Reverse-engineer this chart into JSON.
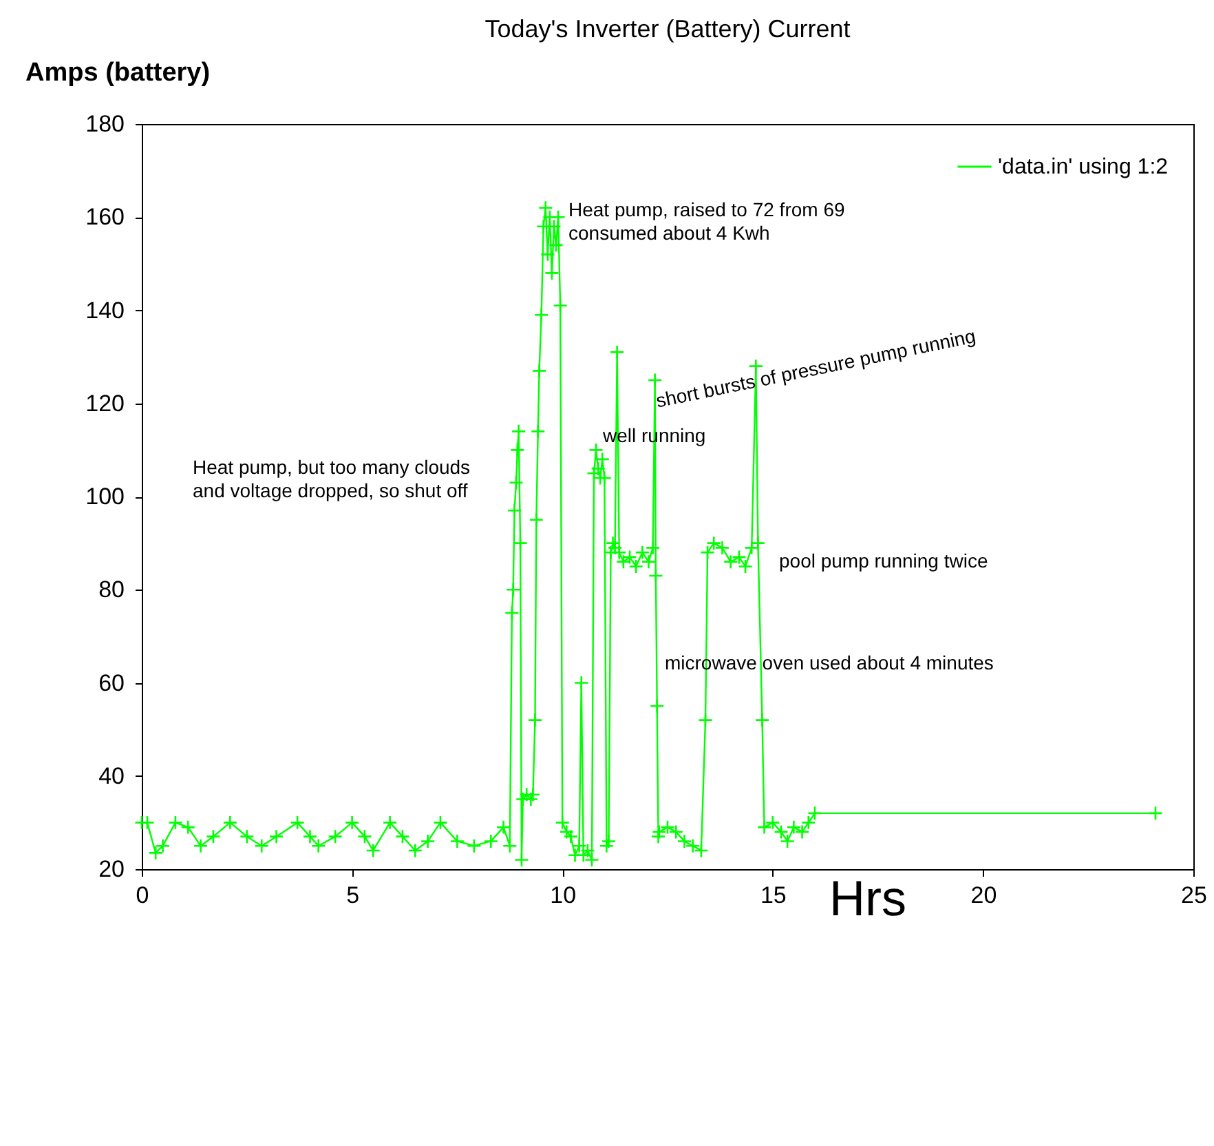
{
  "chart_data": {
    "type": "line",
    "title": "Today's Inverter (Battery) Current",
    "xlabel": "Hrs",
    "ylabel": "Amps (battery)",
    "x": [
      0,
      0.13,
      0.33,
      0.5,
      0.8,
      1.1,
      1.4,
      1.7,
      2.1,
      2.5,
      2.85,
      3.2,
      3.7,
      4.0,
      4.2,
      4.6,
      5.0,
      5.3,
      5.5,
      5.9,
      6.2,
      6.5,
      6.8,
      7.1,
      7.5,
      7.9,
      8.3,
      8.6,
      8.75,
      8.8,
      8.83,
      8.86,
      8.9,
      8.93,
      8.96,
      9.0,
      9.03,
      9.06,
      9.15,
      9.25,
      9.3,
      9.35,
      9.38,
      9.42,
      9.45,
      9.5,
      9.55,
      9.6,
      9.65,
      9.7,
      9.75,
      9.8,
      9.85,
      9.9,
      9.95,
      10.0,
      10.1,
      10.2,
      10.3,
      10.4,
      10.45,
      10.5,
      10.6,
      10.7,
      10.75,
      10.8,
      10.85,
      10.9,
      10.95,
      11.0,
      11.05,
      11.1,
      11.15,
      11.2,
      11.25,
      11.3,
      11.35,
      11.45,
      11.6,
      11.75,
      11.9,
      12.05,
      12.15,
      12.2,
      12.22,
      12.25,
      12.28,
      12.3,
      12.5,
      12.7,
      12.9,
      13.1,
      13.3,
      13.4,
      13.45,
      13.6,
      13.8,
      14.0,
      14.2,
      14.35,
      14.5,
      14.6,
      14.65,
      14.75,
      14.8,
      15.0,
      15.2,
      15.35,
      15.5,
      15.7,
      15.85,
      16.0,
      24.1
    ],
    "series": [
      {
        "name": "'data.in' using 1:2",
        "color": "#00ff00",
        "values": [
          30,
          30,
          23.5,
          25,
          30,
          29,
          25,
          27,
          30,
          27,
          25,
          27,
          30,
          27,
          25,
          27,
          30,
          27,
          24,
          30,
          27,
          24,
          26,
          30,
          26,
          25,
          26,
          29,
          25,
          75,
          80,
          97,
          103,
          110,
          114,
          90,
          22,
          35,
          36,
          35,
          36,
          52,
          95,
          114,
          127,
          139,
          158,
          162,
          152,
          160,
          148,
          158,
          154,
          160,
          141,
          30,
          28,
          27,
          23,
          25,
          60,
          23,
          24,
          22,
          105,
          110,
          106,
          104,
          108,
          104,
          25,
          26,
          88,
          90,
          89,
          131,
          88,
          86,
          87,
          85,
          88,
          86,
          89,
          125,
          83,
          55,
          27,
          28,
          29,
          28,
          26,
          25,
          24,
          52,
          88,
          90,
          89,
          86,
          87,
          85,
          89,
          128,
          90,
          52,
          29,
          30,
          28,
          26,
          29,
          28,
          30,
          32,
          32
        ]
      }
    ],
    "xlim": [
      0,
      25
    ],
    "xticks": [
      0,
      5,
      10,
      15,
      20,
      25
    ],
    "ylim": [
      20,
      180
    ],
    "yticks": [
      20,
      40,
      60,
      80,
      100,
      120,
      140,
      160,
      180
    ],
    "legend": "top right",
    "marker": "cross",
    "line_style": "solid",
    "grid": false,
    "annotations": [
      "Heat pump, raised to 72 from 69\nconsumed about 4 Kwh",
      "short bursts of pressure pump running",
      "well running",
      "Heat pump, but too many clouds\nand voltage dropped, so shut off",
      "pool pump running twice",
      "microwave oven used about 4 minutes"
    ]
  }
}
